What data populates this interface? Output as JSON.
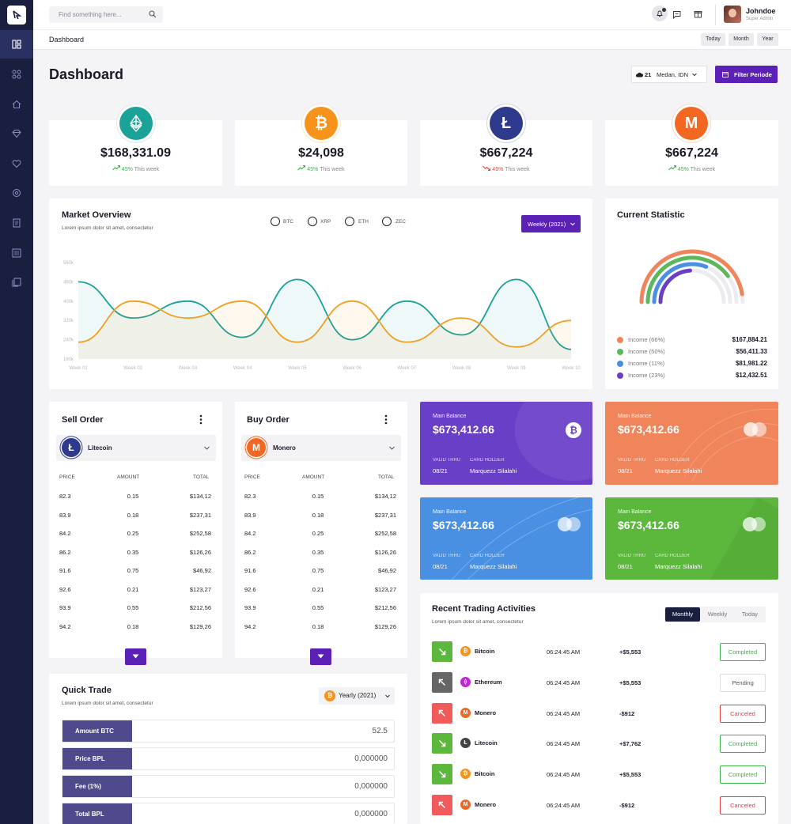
{
  "search": {
    "placeholder": "Find something here..."
  },
  "user": {
    "name": "Johndoe",
    "role": "Super Admin"
  },
  "breadcrumb": "Dashboard",
  "range_buttons": [
    "Today",
    "Month",
    "Year"
  ],
  "page_title": "Dashboard",
  "weather": {
    "temp": "21",
    "location": "Medan, IDN"
  },
  "filter_button": "Filter Periode",
  "stats": [
    {
      "amount": "$168,331.09",
      "pct": "45%",
      "label": "This week",
      "coin": "ethereum",
      "color": "#1aa198",
      "trend": "up"
    },
    {
      "amount": "$24,098",
      "pct": "45%",
      "label": "This week",
      "coin": "bitcoin",
      "color": "#f7931a",
      "trend": "up"
    },
    {
      "amount": "$667,224",
      "pct": "45%",
      "label": "This week",
      "coin": "litecoin",
      "color": "#2e3a8c",
      "trend": "down"
    },
    {
      "amount": "$667,224",
      "pct": "45%",
      "label": "This week",
      "coin": "monero",
      "color": "#f26822",
      "trend": "up"
    }
  ],
  "market": {
    "title": "Market Overview",
    "subtitle": "Lorem ipsum dolor sit amet, consectetur",
    "options": [
      "BTC",
      "XRP",
      "ETH",
      "ZEC"
    ],
    "period_button": "Weekly (2021)"
  },
  "chart_data": {
    "type": "area",
    "title": "Market Overview",
    "categories": [
      "Week 01",
      "Week 02",
      "Week 03",
      "Week 04",
      "Week 05",
      "Week 06",
      "Week 07",
      "Week 08",
      "Week 09",
      "Week 10"
    ],
    "y_ticks": [
      "560k",
      "480k",
      "400k",
      "320k",
      "240k",
      "160k"
    ],
    "ylim": [
      160,
      560
    ],
    "grid": false,
    "series": [
      {
        "color": "#1aa198",
        "values": [
          480,
          330,
          400,
          250,
          490,
          240,
          400,
          260,
          490,
          200
        ]
      },
      {
        "color": "#f0a020",
        "values": [
          230,
          400,
          330,
          400,
          230,
          400,
          230,
          330,
          210,
          320
        ]
      }
    ]
  },
  "current_statistic": {
    "title": "Current Statistic",
    "items": [
      {
        "label": "Income (66%)",
        "value": "$167,884.21",
        "color": "#f0855c"
      },
      {
        "label": "Income (50%)",
        "value": "$56,411.33",
        "color": "#5cb85c"
      },
      {
        "label": "Income (11%)",
        "value": "$81,981.22",
        "color": "#4a90e2"
      },
      {
        "label": "Income (23%)",
        "value": "$12,432.51",
        "color": "#6a3fc8"
      }
    ],
    "gauge_fractions": [
      0.66,
      0.5,
      0.11,
      0.23
    ]
  },
  "sell_order": {
    "title": "Sell Order",
    "coin": "Litecoin",
    "headers": [
      "PRICE",
      "AMOUNT",
      "TOTAL"
    ],
    "rows": [
      [
        "82.3",
        "0.15",
        "$134,12"
      ],
      [
        "83.9",
        "0.18",
        "$237,31"
      ],
      [
        "84.2",
        "0.25",
        "$252,58"
      ],
      [
        "86.2",
        "0.35",
        "$126,26"
      ],
      [
        "91.6",
        "0.75",
        "$46,92"
      ],
      [
        "92.6",
        "0.21",
        "$123,27"
      ],
      [
        "93.9",
        "0.55",
        "$212,56"
      ],
      [
        "94.2",
        "0.18",
        "$129,26"
      ]
    ]
  },
  "buy_order": {
    "title": "Buy Order",
    "coin": "Monero",
    "headers": [
      "PRICE",
      "AMOUNT",
      "TOTAL"
    ],
    "rows": [
      [
        "82.3",
        "0.15",
        "$134,12"
      ],
      [
        "83.9",
        "0.18",
        "$237,31"
      ],
      [
        "84.2",
        "0.25",
        "$252,58"
      ],
      [
        "86.2",
        "0.35",
        "$126,26"
      ],
      [
        "91.6",
        "0.75",
        "$46,92"
      ],
      [
        "92.6",
        "0.21",
        "$123,27"
      ],
      [
        "93.9",
        "0.55",
        "$212,56"
      ],
      [
        "94.2",
        "0.18",
        "$129,26"
      ]
    ]
  },
  "balance_cards": [
    {
      "label": "Main Balance",
      "amount": "$673,412.66",
      "valid_label": "VALID THRU",
      "valid": "08/21",
      "holder_label": "CARD HOLDER",
      "holder": "Marquezz Silalahi",
      "color": "#6a3fc8"
    },
    {
      "label": "Main Balance",
      "amount": "$673,412.66",
      "valid_label": "VALID THRU",
      "valid": "08/21",
      "holder_label": "CARD HOLDER",
      "holder": "Marquezz Silalahi",
      "color": "#f0855c"
    },
    {
      "label": "Main Balance",
      "amount": "$673,412.66",
      "valid_label": "VALID THRU",
      "valid": "08/21",
      "holder_label": "CARD HOLDER",
      "holder": "Marquezz Silalahi",
      "color": "#4a90e2"
    },
    {
      "label": "Main Balance",
      "amount": "$673,412.66",
      "valid_label": "VALID THRU",
      "valid": "08/21",
      "holder_label": "CARD HOLDER",
      "holder": "Marquezz Silalahi",
      "color": "#5cb83c"
    }
  ],
  "quick_trade": {
    "title": "Quick Trade",
    "subtitle": "Lorem ipsum dolor sit amet, consectetur",
    "period": "Yearly (2021)",
    "rows": [
      {
        "label": "Amount BTC",
        "value": "52.5"
      },
      {
        "label": "Price BPL",
        "value": "0,000000"
      },
      {
        "label": "Fee (1%)",
        "value": "0,000000"
      },
      {
        "label": "Total BPL",
        "value": "0,000000"
      }
    ]
  },
  "recent": {
    "title": "Recent Trading Activities",
    "subtitle": "Lorem ipsum dolor sit amet, consectetur",
    "tabs": [
      "Monthly",
      "Weekly",
      "Today"
    ],
    "rows": [
      {
        "coin": "Bitcoin",
        "time": "06:24:45 AM",
        "amount": "+$5,553",
        "status": "Completed",
        "dir": "down"
      },
      {
        "coin": "Ethereum",
        "time": "06:24:45 AM",
        "amount": "+$5,553",
        "status": "Pending",
        "dir": "up"
      },
      {
        "coin": "Monero",
        "time": "06:24:45 AM",
        "amount": "-$912",
        "status": "Canceled",
        "dir": "up"
      },
      {
        "coin": "Litecoin",
        "time": "06:24:45 AM",
        "amount": "+$7,762",
        "status": "Completed",
        "dir": "down"
      },
      {
        "coin": "Bitcoin",
        "time": "06:24:45 AM",
        "amount": "+$5,553",
        "status": "Completed",
        "dir": "down"
      },
      {
        "coin": "Monero",
        "time": "06:24:45 AM",
        "amount": "-$912",
        "status": "Canceled",
        "dir": "up"
      }
    ]
  }
}
